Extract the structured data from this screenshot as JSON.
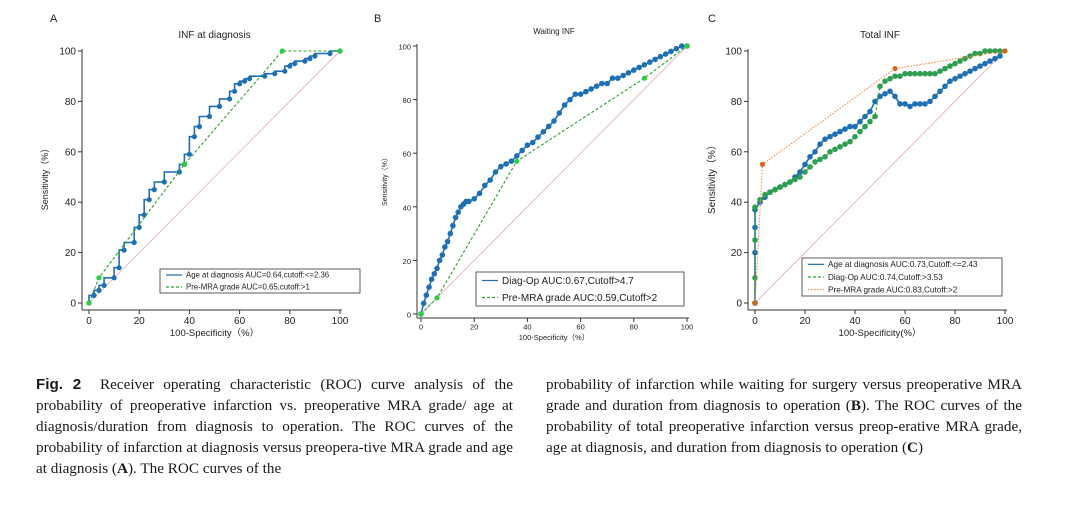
{
  "chart_data": [
    {
      "type": "line",
      "panel_letter": "A",
      "title": "INF at diagnosis",
      "xlabel": "100-Specificity（%）",
      "ylabel": "Sensitivity（%）",
      "xlim": [
        0,
        100
      ],
      "ylim": [
        0,
        100
      ],
      "xticks": [
        0,
        20,
        40,
        60,
        80,
        100
      ],
      "yticks": [
        0,
        20,
        40,
        60,
        80,
        100
      ],
      "legend_position": "bottom-right",
      "series": [
        {
          "name": "Age at diagnosis  AUC=0.64,cutoff:<=2.36",
          "style": "solid",
          "color": "#1f6fb5",
          "marker_color": "#1f6fb5",
          "x": [
            0,
            0,
            2,
            2,
            4,
            4,
            6,
            6,
            10,
            10,
            12,
            12,
            14,
            14,
            18,
            18,
            20,
            20,
            22,
            22,
            24,
            24,
            26,
            26,
            30,
            30,
            36,
            36,
            38,
            38,
            40,
            40,
            42,
            42,
            44,
            44,
            48,
            48,
            52,
            52,
            56,
            56,
            58,
            58,
            60,
            60,
            62,
            62,
            64,
            64,
            70,
            70,
            74,
            74,
            78,
            78,
            80,
            80,
            82,
            82,
            86,
            86,
            88,
            88,
            90,
            90,
            96,
            96,
            100
          ],
          "y": [
            0,
            3,
            3,
            5,
            5,
            7,
            7,
            10,
            10,
            14,
            14,
            21,
            21,
            24,
            24,
            30,
            30,
            35,
            35,
            41,
            41,
            45,
            45,
            48,
            48,
            52,
            52,
            55,
            55,
            59,
            59,
            66,
            66,
            70,
            70,
            74,
            74,
            78,
            78,
            81,
            81,
            84,
            84,
            87,
            87,
            88,
            88,
            89,
            89,
            90,
            90,
            91,
            91,
            92,
            92,
            94,
            94,
            95,
            95,
            96,
            96,
            97,
            97,
            98,
            98,
            99,
            99,
            100,
            100
          ],
          "markers_x": [
            0,
            2,
            4,
            6,
            10,
            12,
            14,
            18,
            20,
            22,
            24,
            26,
            30,
            36,
            38,
            40,
            42,
            44,
            48,
            52,
            56,
            58,
            60,
            62,
            64,
            70,
            74,
            78,
            80,
            82,
            86,
            88,
            90,
            96,
            100
          ],
          "markers_y": [
            0,
            3,
            5,
            7,
            10,
            14,
            21,
            24,
            30,
            35,
            41,
            45,
            48,
            52,
            55,
            59,
            66,
            70,
            74,
            78,
            81,
            84,
            87,
            88,
            89,
            90,
            91,
            92,
            94,
            95,
            96,
            97,
            98,
            99,
            100
          ]
        },
        {
          "name": "Pre-MRA grade  AUC=0.65,cutoff:>1",
          "style": "dashed",
          "color": "#2ca02c",
          "marker_color": "#2ecc40",
          "x": [
            0,
            4,
            38,
            77,
            100
          ],
          "y": [
            0,
            10,
            55,
            100,
            100
          ]
        }
      ]
    },
    {
      "type": "line",
      "panel_letter": "B",
      "title": "Waiting INF",
      "xlabel": "100-Specificity（%）",
      "ylabel": "Sensitivity（%）",
      "xlim": [
        0,
        100
      ],
      "ylim": [
        0,
        100
      ],
      "xticks": [
        0,
        20,
        40,
        60,
        80,
        100
      ],
      "yticks": [
        0,
        20,
        40,
        60,
        80,
        100
      ],
      "legend_position": "bottom-right",
      "series": [
        {
          "name": "Diag-Op AUC:0.67,Cutoff>4.7",
          "style": "solid",
          "color": "#1f6fb5",
          "marker_color": "#1f6fb5",
          "x": [
            0,
            1,
            2,
            3,
            4,
            5,
            6,
            7,
            8,
            9,
            10,
            11,
            12,
            13,
            14,
            15,
            16,
            17,
            18,
            20,
            22,
            24,
            26,
            28,
            30,
            32,
            34,
            36,
            38,
            40,
            42,
            44,
            46,
            48,
            50,
            52,
            54,
            56,
            58,
            60,
            62,
            64,
            66,
            68,
            70,
            72,
            74,
            76,
            78,
            80,
            82,
            84,
            86,
            88,
            90,
            92,
            94,
            96,
            98,
            100
          ],
          "y": [
            0,
            4,
            7,
            10,
            13,
            15,
            17,
            20,
            22,
            25,
            27,
            30,
            33,
            36,
            38,
            40,
            41,
            42,
            42,
            43,
            45,
            48,
            50,
            53,
            55,
            56,
            57,
            59,
            61,
            63,
            64,
            66,
            68,
            70,
            72,
            75,
            78,
            80,
            82,
            82,
            83,
            84,
            85,
            86,
            86,
            88,
            88,
            89,
            90,
            91,
            92,
            93,
            94,
            95,
            96,
            97,
            98,
            99,
            100,
            100
          ],
          "markers": true
        },
        {
          "name": "Pre-MRA grade AUC:0.59,Cutoff>2",
          "style": "dashed",
          "color": "#2ca02c",
          "marker_color": "#2ecc40",
          "x": [
            0,
            6,
            36,
            84,
            100
          ],
          "y": [
            0,
            6,
            57,
            88,
            100
          ]
        }
      ]
    },
    {
      "type": "line",
      "panel_letter": "C",
      "title": "Total INF",
      "xlabel": "100-Specificity(%）",
      "ylabel": "Sensitivity（%）",
      "xlim": [
        0,
        100
      ],
      "ylim": [
        0,
        100
      ],
      "xticks": [
        0,
        20,
        40,
        60,
        80,
        100
      ],
      "yticks": [
        0,
        20,
        40,
        60,
        80,
        100
      ],
      "legend_position": "bottom-right",
      "series": [
        {
          "name": "Age at diagnosis AUC:0.73,Cutoff:<=2.43",
          "style": "solid",
          "color": "#1f6fb5",
          "marker_color": "#1f6fb5",
          "x": [
            0,
            0,
            0,
            0,
            2,
            4,
            6,
            8,
            10,
            12,
            14,
            16,
            18,
            20,
            22,
            24,
            26,
            28,
            30,
            32,
            34,
            36,
            38,
            40,
            42,
            44,
            46,
            48,
            50,
            52,
            54,
            56,
            58,
            60,
            62,
            64,
            66,
            68,
            70,
            72,
            74,
            76,
            78,
            80,
            82,
            84,
            86,
            88,
            90,
            92,
            94,
            96,
            98
          ],
          "y": [
            0,
            20,
            30,
            37,
            40,
            42,
            44,
            45,
            46,
            47,
            48,
            50,
            52,
            55,
            58,
            60,
            63,
            65,
            66,
            67,
            68,
            69,
            70,
            70,
            72,
            74,
            76,
            80,
            82,
            83,
            84,
            82,
            79,
            79,
            78,
            79,
            79,
            79,
            80,
            82,
            84,
            86,
            88,
            89,
            90,
            91,
            92,
            93,
            94,
            95,
            96,
            97,
            98
          ],
          "markers": true
        },
        {
          "name": "Diag-Op AUC:0.74,Cutoff:>3.53",
          "style": "dashed",
          "color": "#2ca02c",
          "marker_color": "#2e9e4f",
          "x": [
            0,
            0,
            0,
            0,
            2,
            4,
            6,
            8,
            10,
            12,
            14,
            16,
            18,
            20,
            22,
            24,
            26,
            28,
            30,
            32,
            34,
            36,
            38,
            40,
            42,
            44,
            46,
            48,
            50,
            52,
            54,
            56,
            58,
            60,
            62,
            64,
            66,
            68,
            70,
            72,
            74,
            76,
            78,
            80,
            82,
            84,
            86,
            88,
            90,
            92,
            94,
            96,
            98
          ],
          "y": [
            0,
            10,
            25,
            38,
            41,
            43,
            44,
            45,
            46,
            47,
            48,
            49,
            50,
            52,
            54,
            56,
            57,
            58,
            60,
            61,
            62,
            63,
            64,
            66,
            68,
            70,
            72,
            74,
            86,
            88,
            89,
            90,
            90,
            91,
            91,
            91,
            91,
            91,
            91,
            91,
            92,
            93,
            94,
            95,
            96,
            97,
            98,
            99,
            99,
            100,
            100,
            100,
            100
          ],
          "markers": true
        },
        {
          "name": "Pre-MRA grade AUC:0.83,Cutoff:>2",
          "style": "dotted",
          "color": "#f08a3c",
          "marker_color": "#d2691e",
          "x": [
            0,
            3,
            56,
            100
          ],
          "y": [
            0,
            55,
            93,
            100
          ]
        }
      ]
    }
  ],
  "caption": {
    "fig_label": "Fig. 2",
    "col1_text": "Receiver operating characteristic (ROC) curve analysis of the probability of preoperative infarction vs. preoperative MRA grade/ age at diagnosis/duration from diagnosis to operation. The ROC curves of the probability of infarction at diagnosis versus preopera-tive MRA grade and age at diagnosis (",
    "col1_bold": "A",
    "col1_tail": "). The ROC curves of the",
    "col2_text": "probability of infarction while waiting for surgery versus preoperative MRA grade and duration from diagnosis to operation (",
    "col2_bold1": "B",
    "col2_mid": "). The ROC curves of the probability of total preoperative infarction versus preop-erative MRA grade, age at diagnosis, and duration from diagnosis to operation (",
    "col2_bold2": "C",
    "col2_tail": ")"
  }
}
